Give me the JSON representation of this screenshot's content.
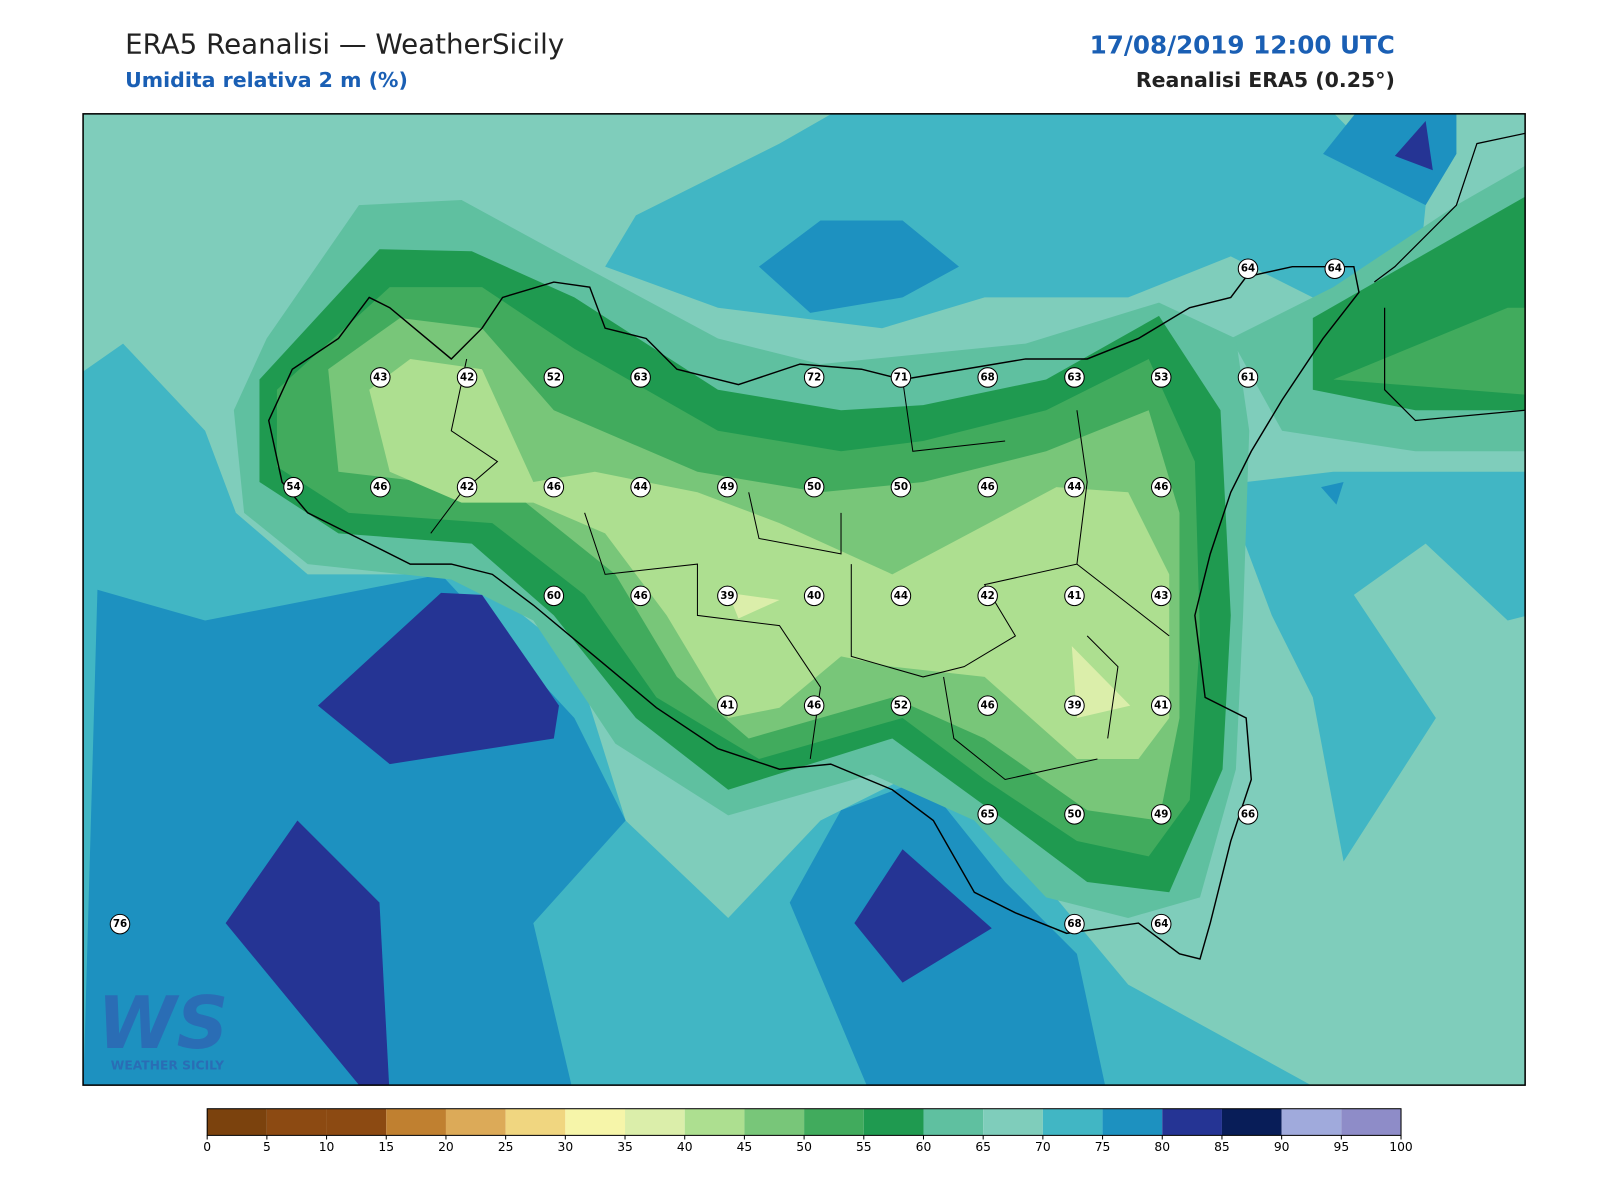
{
  "header": {
    "title": "ERA5 Reanalisi — WeatherSicily",
    "subtitle": "Umidita relativa 2 m (%)",
    "date": "17/08/2019 12:00 UTC",
    "source": "Reanalisi ERA5 (0.25°)"
  },
  "stations": {
    "rows": [
      [
        null,
        null,
        null,
        null,
        null,
        null,
        null,
        null,
        null,
        null,
        null,
        null,
        null,
        64,
        64
      ],
      [
        null,
        null,
        null,
        43,
        42,
        52,
        63,
        null,
        72,
        71,
        68,
        63,
        53,
        61,
        null
      ],
      [
        null,
        null,
        54,
        46,
        42,
        46,
        44,
        49,
        50,
        50,
        46,
        44,
        46,
        null,
        null
      ],
      [
        null,
        null,
        null,
        null,
        null,
        60,
        46,
        39,
        40,
        44,
        42,
        41,
        43,
        null,
        null
      ],
      [
        null,
        null,
        null,
        null,
        null,
        null,
        null,
        41,
        46,
        52,
        46,
        39,
        41,
        null,
        null
      ],
      [
        null,
        null,
        null,
        null,
        null,
        null,
        null,
        null,
        null,
        null,
        65,
        50,
        49,
        66,
        null
      ],
      [
        76,
        null,
        null,
        null,
        null,
        null,
        null,
        null,
        null,
        null,
        null,
        68,
        64,
        null,
        null
      ]
    ]
  },
  "colorbar": {
    "ticks": [
      0,
      5,
      10,
      15,
      20,
      25,
      30,
      35,
      40,
      45,
      50,
      55,
      60,
      65,
      70,
      75,
      80,
      85,
      90,
      95,
      100
    ],
    "colors": [
      "#7b420d",
      "#8c4a12",
      "#8c4a12",
      "#c08030",
      "#dcaa58",
      "#f0d680",
      "#f6f5a9",
      "#dbeeaa",
      "#addf90",
      "#78c679",
      "#41ab5d",
      "#1f9a50",
      "#5fc0a0",
      "#7fcdbb",
      "#41b6c4",
      "#1d91c0",
      "#253494",
      "#081d58",
      "#a0aadc",
      "#8e8cc8"
    ]
  },
  "logo": {
    "mark": "WS",
    "text": "WEATHER SICILY"
  }
}
